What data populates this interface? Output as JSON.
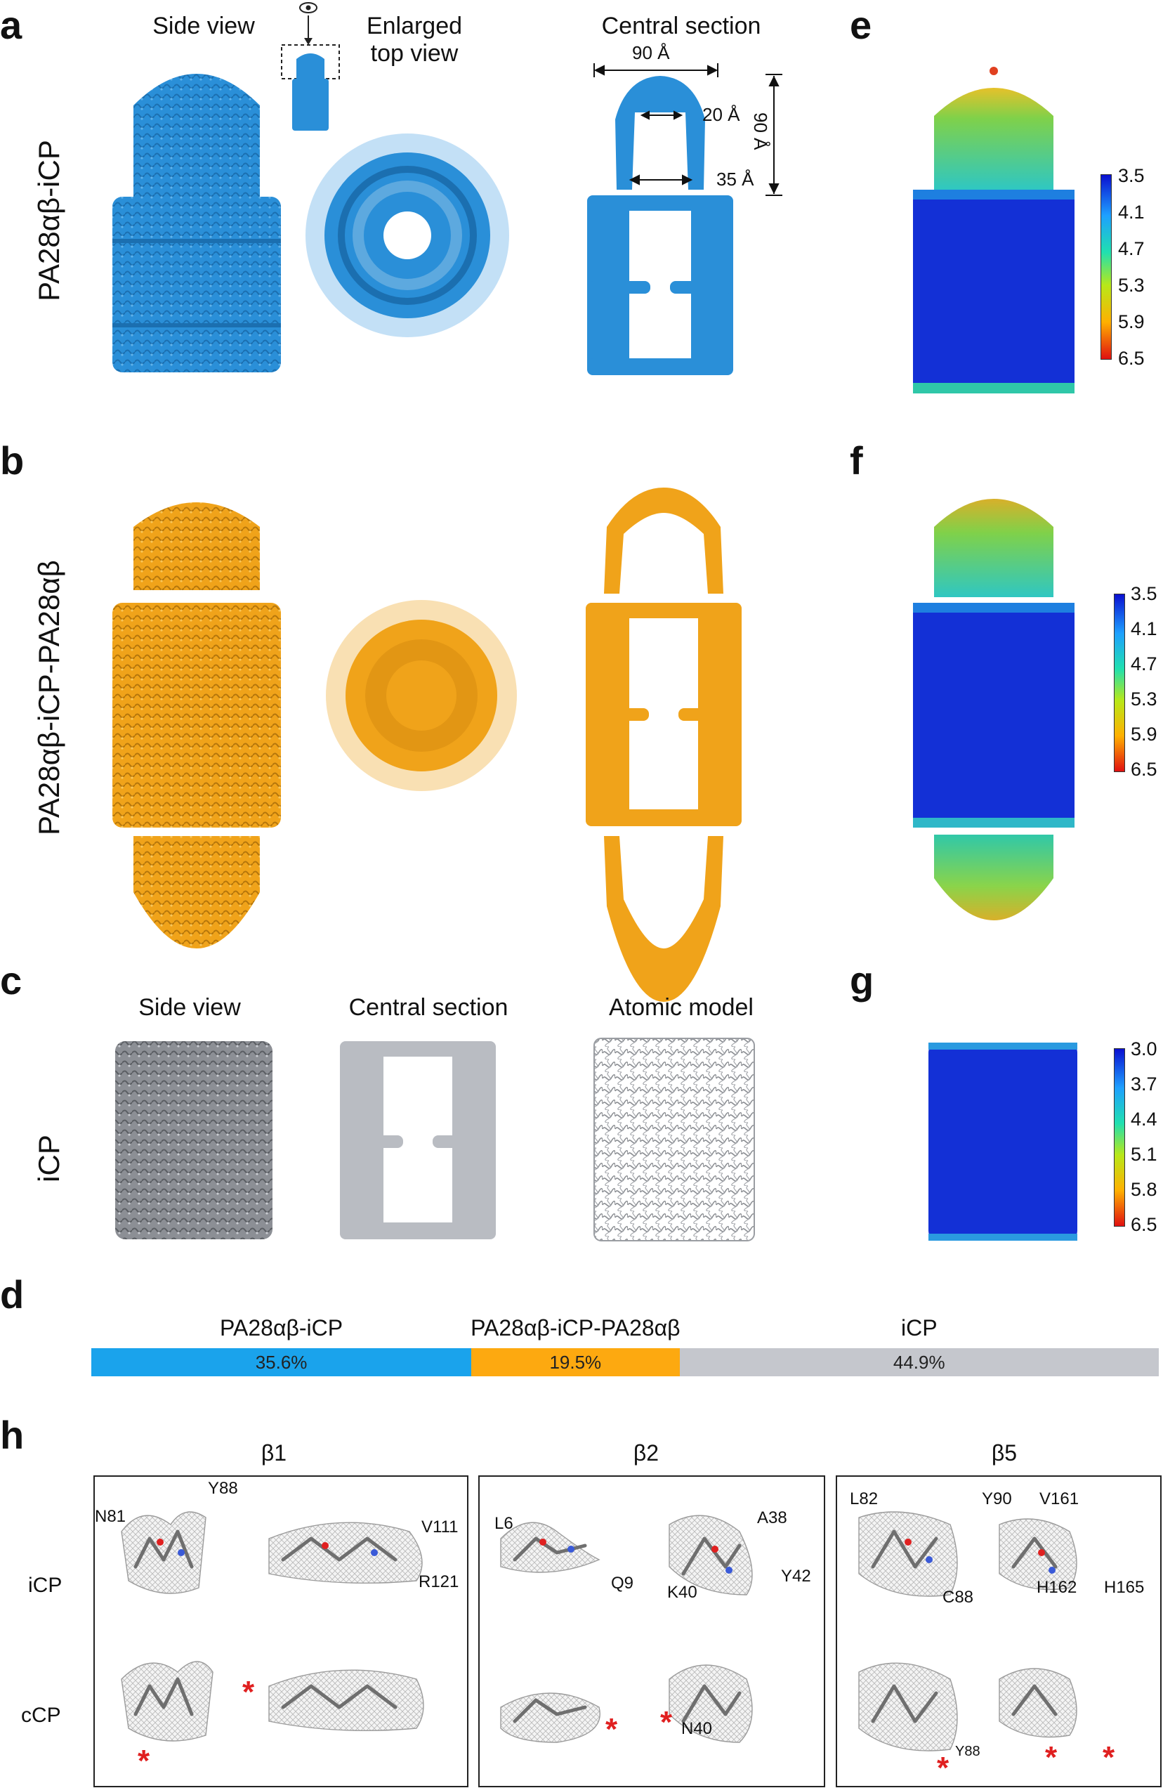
{
  "panels": {
    "a": "a",
    "b": "b",
    "c": "c",
    "d": "d",
    "e": "e",
    "f": "f",
    "g": "g",
    "h": "h"
  },
  "row_a": {
    "row_label": "PA28αβ-iCP",
    "side_view": "Side view",
    "enlarged_top_view": [
      "Enlarged",
      "top view"
    ],
    "central_section": "Central section",
    "dims": {
      "width": "90 Å",
      "inner_top": "20 Å",
      "inner_bottom": "35 Å",
      "height": "90 Å"
    },
    "colors": {
      "map": "#2a8fd8"
    }
  },
  "row_b": {
    "row_label": "PA28αβ-iCP-PA28αβ",
    "colors": {
      "map": "#f0a31a"
    }
  },
  "row_c": {
    "row_label": "iCP",
    "side_view": "Side view",
    "central_section": "Central section",
    "atomic_model": "Atomic model",
    "colors": {
      "map": "#b9bcc2"
    }
  },
  "colorbars": {
    "e": [
      "3.5",
      "4.1",
      "4.7",
      "5.3",
      "5.9",
      "6.5"
    ],
    "f": [
      "3.5",
      "4.1",
      "4.7",
      "5.3",
      "5.9",
      "6.5"
    ],
    "g": [
      "3.0",
      "3.7",
      "4.4",
      "5.1",
      "5.8",
      "6.5"
    ]
  },
  "chart_data": {
    "type": "bar",
    "orientation": "horizontal-stacked",
    "categories": [
      "PA28αβ-iCP",
      "PA28αβ-iCP-PA28αβ",
      "iCP"
    ],
    "values": [
      35.6,
      19.5,
      44.9
    ],
    "value_labels": [
      "35.6%",
      "19.5%",
      "44.9%"
    ],
    "colors": [
      "#1aa3ec",
      "#fda910",
      "#c5c7cd"
    ]
  },
  "panel_h": {
    "groups": [
      {
        "title": "β1",
        "labels": [
          "N81",
          "Y88",
          "V111",
          "R121"
        ]
      },
      {
        "title": "β2",
        "labels": [
          "L6",
          "Q9",
          "A38",
          "K40",
          "Y42",
          "N40"
        ]
      },
      {
        "title": "β5",
        "labels": [
          "L82",
          "Y90",
          "V161",
          "C88",
          "H162",
          "H165",
          "Y88"
        ]
      }
    ],
    "rows": [
      "iCP",
      "cCP"
    ],
    "star": "*"
  }
}
